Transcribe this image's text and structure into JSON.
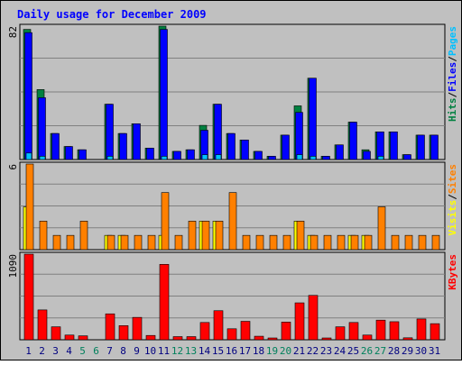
{
  "chart_data": {
    "type": "bar",
    "title": "Daily usage for December 2009",
    "days": [
      "1",
      "2",
      "3",
      "4",
      "5",
      "6",
      "7",
      "8",
      "9",
      "10",
      "11",
      "12",
      "13",
      "14",
      "15",
      "16",
      "17",
      "18",
      "19",
      "20",
      "21",
      "22",
      "23",
      "24",
      "25",
      "26",
      "27",
      "28",
      "29",
      "30",
      "31"
    ],
    "weekend_days": [
      "5",
      "6",
      "12",
      "13",
      "19",
      "20",
      "26",
      "27"
    ],
    "colors": {
      "background": "#c0c0c0",
      "title": "#0000ff",
      "hits": "#008040",
      "files": "#0000ff",
      "pages": "#00c0ff",
      "visits": "#ffff00",
      "sites": "#ff8000",
      "kbytes": "#ff0000",
      "weekend_label": "#00805c",
      "weekday_label": "#000080"
    },
    "panels": [
      {
        "name": "hits-files-pages",
        "max_label": "82",
        "ymax": 82,
        "legend": [
          {
            "text": "Hits",
            "color": "#008040"
          },
          {
            "text": "/",
            "color": "#000000"
          },
          {
            "text": "Files",
            "color": "#0000ff"
          },
          {
            "text": "/",
            "color": "#000000"
          },
          {
            "text": "Pages",
            "color": "#00c0ff"
          }
        ],
        "series": [
          {
            "name": "Hits",
            "color": "#008040",
            "values": [
              80,
              43,
              16,
              8,
              6,
              0,
              34,
              16,
              22,
              7,
              82,
              5,
              6,
              21,
              34,
              16,
              12,
              5,
              2,
              15,
              33,
              50,
              2,
              9,
              23,
              6,
              17,
              17,
              3,
              15,
              15
            ]
          },
          {
            "name": "Files",
            "color": "#0000ff",
            "values": [
              78,
              38,
              16,
              8,
              6,
              0,
              34,
              16,
              22,
              7,
              80,
              5,
              6,
              18,
              34,
              16,
              12,
              5,
              2,
              15,
              29,
              50,
              2,
              9,
              23,
              5,
              17,
              17,
              3,
              15,
              15
            ]
          },
          {
            "name": "Pages",
            "color": "#00c0ff",
            "values": [
              4,
              2,
              0,
              0,
              0,
              0,
              2,
              0,
              0,
              0,
              2,
              0,
              0,
              3,
              3,
              0,
              0,
              0,
              0,
              0,
              3,
              2,
              0,
              0,
              0,
              0,
              2,
              0,
              0,
              0,
              0
            ]
          }
        ]
      },
      {
        "name": "visits-sites",
        "max_label": "6",
        "ymax": 6,
        "legend": [
          {
            "text": "Visits",
            "color": "#ffff00"
          },
          {
            "text": "/",
            "color": "#000000"
          },
          {
            "text": "Sites",
            "color": "#ff8000"
          }
        ],
        "series": [
          {
            "name": "Visits",
            "color": "#ffff00",
            "values": [
              3,
              0,
              0,
              0,
              0,
              0,
              1,
              1,
              0,
              0,
              1,
              0,
              0,
              2,
              2,
              0,
              0,
              0,
              0,
              0,
              2,
              1,
              0,
              0,
              1,
              1,
              0,
              0,
              0,
              0,
              0
            ]
          },
          {
            "name": "Sites",
            "color": "#ff8000",
            "values": [
              6,
              2,
              1,
              1,
              2,
              0,
              1,
              1,
              1,
              1,
              4,
              1,
              2,
              2,
              2,
              4,
              1,
              1,
              1,
              1,
              2,
              1,
              1,
              1,
              1,
              1,
              3,
              1,
              1,
              1,
              1
            ]
          }
        ]
      },
      {
        "name": "kbytes",
        "max_label": "1090",
        "ymax": 1090,
        "legend": [
          {
            "text": "KBytes",
            "color": "#ff0000"
          }
        ],
        "series": [
          {
            "name": "KBytes",
            "color": "#ff0000",
            "values": [
              1090,
              380,
              165,
              60,
              50,
              0,
              330,
              180,
              285,
              55,
              960,
              40,
              40,
              220,
              370,
              140,
              235,
              45,
              15,
              225,
              470,
              565,
              20,
              165,
              220,
              60,
              250,
              230,
              25,
              265,
              205
            ]
          }
        ]
      }
    ]
  }
}
